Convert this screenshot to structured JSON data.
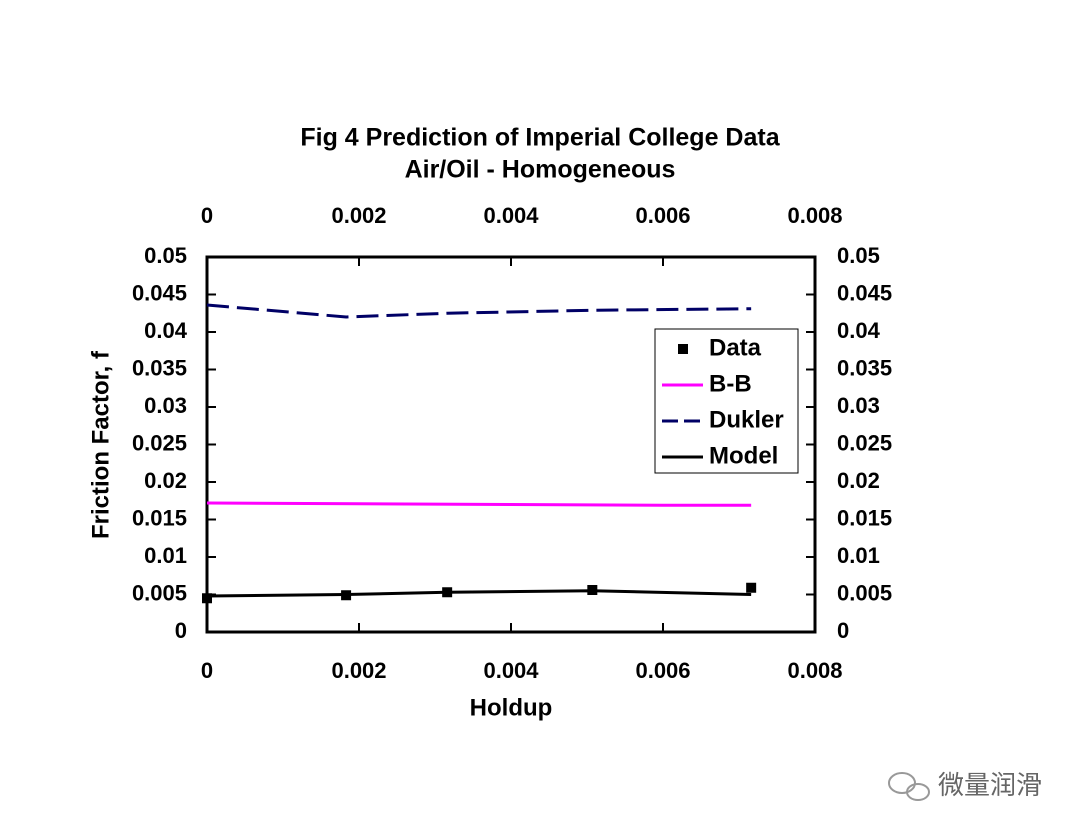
{
  "chart_data": {
    "type": "line",
    "title": "Fig 4 Prediction of Imperial College Data",
    "subtitle": "Air/Oil - Homogeneous",
    "x_label": "Holdup",
    "y_label": "Friction Factor, f",
    "xlim": [
      0,
      0.008
    ],
    "xticks": [
      0,
      0.002,
      0.004,
      0.006,
      0.008
    ],
    "ylim": [
      0,
      0.05
    ],
    "yticks": [
      0,
      0.005,
      0.01,
      0.015,
      0.02,
      0.025,
      0.03,
      0.035,
      0.04,
      0.045,
      0.05
    ],
    "mirror_axes": true,
    "legend": "right",
    "series": [
      {
        "name": "Data",
        "color": "#000000",
        "style": "square-marker",
        "x": [
          0,
          0.00183,
          0.00316,
          0.00507,
          0.00716
        ],
        "values": [
          0.0045,
          0.0049,
          0.0053,
          0.0056,
          0.0059
        ]
      },
      {
        "name": "B-B",
        "color": "#ff00ff",
        "style": "solid",
        "x": [
          0,
          0.002,
          0.004,
          0.006,
          0.00716
        ],
        "values": [
          0.0172,
          0.0171,
          0.017,
          0.0169,
          0.0169
        ]
      },
      {
        "name": "Dukler",
        "color": "#000066",
        "style": "dashed",
        "x": [
          0,
          0.00183,
          0.00316,
          0.00507,
          0.00716
        ],
        "values": [
          0.0436,
          0.042,
          0.0425,
          0.0429,
          0.0431
        ]
      },
      {
        "name": "Model",
        "color": "#000000",
        "style": "solid",
        "x": [
          0,
          0.00183,
          0.00316,
          0.00507,
          0.00716
        ],
        "values": [
          0.0048,
          0.005,
          0.0053,
          0.0055,
          0.005
        ]
      }
    ]
  },
  "watermark": "微量润滑"
}
